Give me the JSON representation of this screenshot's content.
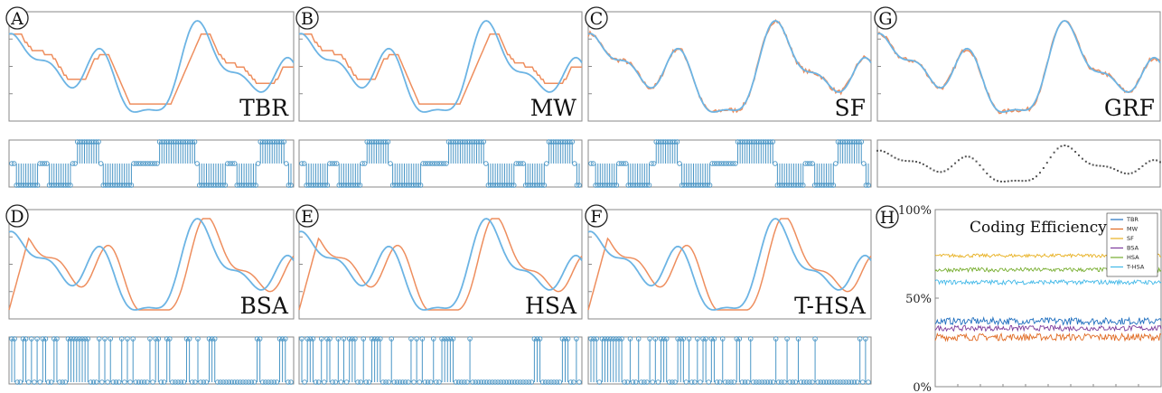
{
  "colors": {
    "signal": "#6cb4e4",
    "reconstruction": "#ee8e5e",
    "spike": "#4a96c6",
    "grf_marker": "#555555"
  },
  "panels": [
    {
      "letter": "A",
      "method": "TBR",
      "spike_type": "ternary"
    },
    {
      "letter": "B",
      "method": "MW",
      "spike_type": "ternary"
    },
    {
      "letter": "C",
      "method": "SF",
      "spike_type": "ternary"
    },
    {
      "letter": "G",
      "method": "GRF",
      "spike_type": "grf"
    },
    {
      "letter": "D",
      "method": "BSA",
      "spike_type": "binary"
    },
    {
      "letter": "E",
      "method": "HSA",
      "spike_type": "binary"
    },
    {
      "letter": "F",
      "method": "T-HSA",
      "spike_type": "binary"
    }
  ],
  "efficiency": {
    "letter": "H",
    "chart_data": {
      "type": "line",
      "title": "Coding Efficiency",
      "ylim": [
        0,
        100
      ],
      "y_ticks": [
        "100%",
        "50%",
        "0%"
      ],
      "series": [
        {
          "name": "TBR",
          "color": "#1f6fbf",
          "mean": 37,
          "noise": 2.0
        },
        {
          "name": "MW",
          "color": "#e06a22",
          "mean": 28,
          "noise": 2.0
        },
        {
          "name": "SF",
          "color": "#e8b020",
          "mean": 74,
          "noise": 1.0
        },
        {
          "name": "BSA",
          "color": "#7c3a9c",
          "mean": 33,
          "noise": 1.5
        },
        {
          "name": "HSA",
          "color": "#76ad2e",
          "mean": 66,
          "noise": 1.2
        },
        {
          "name": "T-HSA",
          "color": "#40b8e8",
          "mean": 59,
          "noise": 1.3
        }
      ]
    }
  }
}
